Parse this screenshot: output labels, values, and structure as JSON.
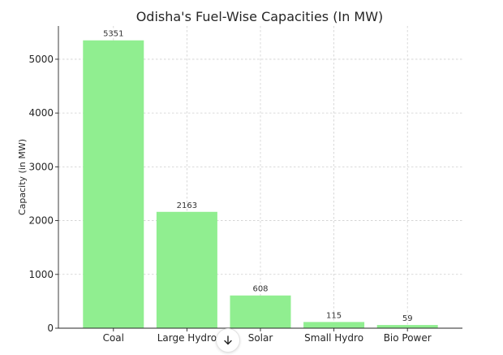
{
  "chart_data": {
    "type": "bar",
    "title": "Odisha's Fuel-Wise Capacities (In MW)",
    "xlabel": "",
    "ylabel": "Capacity (in MW)",
    "categories": [
      "Coal",
      "Large Hydro",
      "Solar",
      "Small Hydro",
      "Bio Power"
    ],
    "values": [
      5351,
      2163,
      608,
      115,
      59
    ],
    "value_labels": [
      "5351",
      "2163",
      "608",
      "115",
      "59"
    ],
    "ylim": [
      0,
      5618
    ],
    "yticks": [
      0,
      1000,
      2000,
      3000,
      4000,
      5000
    ],
    "ytick_labels": [
      "0",
      "1000",
      "2000",
      "3000",
      "4000",
      "5000"
    ],
    "grid": true,
    "bar_color": "#90ee90"
  },
  "overlay": {
    "scroll_down_icon": "arrow-down-icon"
  }
}
